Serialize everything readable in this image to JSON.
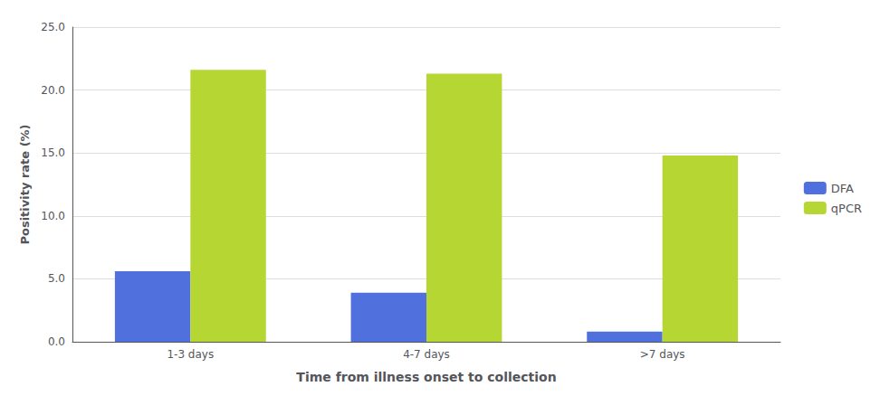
{
  "chart_data": {
    "type": "bar",
    "categories": [
      "1-3 days",
      "4-7 days",
      ">7 days"
    ],
    "series": [
      {
        "name": "DFA",
        "values": [
          5.6,
          3.9,
          0.8
        ]
      },
      {
        "name": "qPCR",
        "values": [
          21.6,
          21.3,
          14.8
        ]
      }
    ],
    "xlabel": "Time from illness onset to collection",
    "ylabel": "Positivity rate (%)",
    "ylim": [
      0,
      25.0
    ],
    "yticks": [
      {
        "value": 0.0,
        "label": "0.0"
      },
      {
        "value": 5.0,
        "label": "5.0"
      },
      {
        "value": 10.0,
        "label": "10.0"
      },
      {
        "value": 15.0,
        "label": "15.0"
      },
      {
        "value": 20.0,
        "label": "20.0"
      },
      {
        "value": 25.0,
        "label": "25.0"
      }
    ],
    "grid": true,
    "legend": "right"
  }
}
